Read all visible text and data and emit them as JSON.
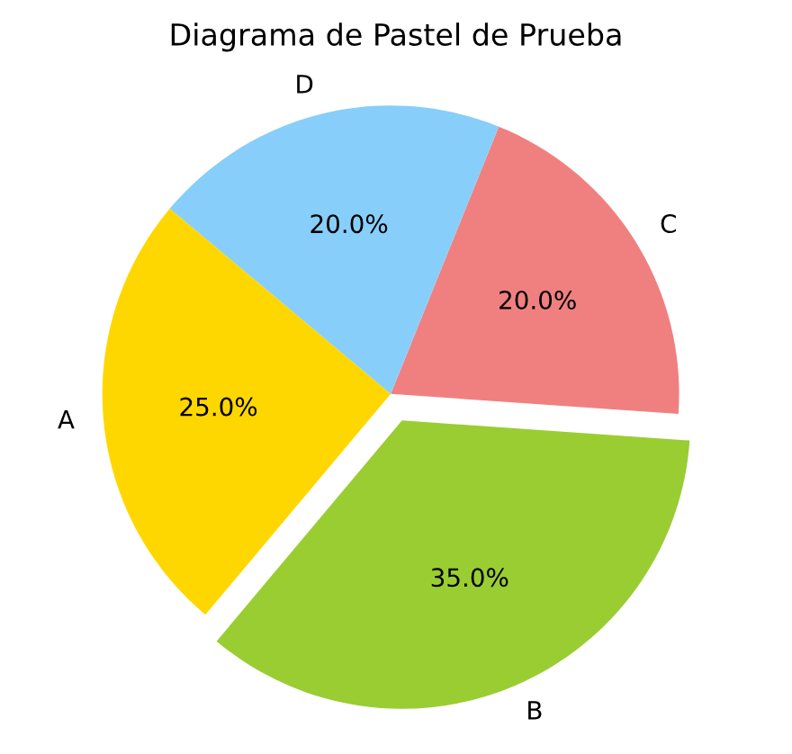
{
  "chart_data": {
    "type": "pie",
    "title": "Diagrama de Pastel de Prueba",
    "categories": [
      "A",
      "B",
      "C",
      "D"
    ],
    "values": [
      25,
      35,
      20,
      20
    ],
    "colors": [
      "#ffd700",
      "#9acd32",
      "#f08080",
      "#87cefa"
    ],
    "value_labels": [
      "25.0%",
      "35.0%",
      "20.0%",
      "20.0%"
    ]
  }
}
